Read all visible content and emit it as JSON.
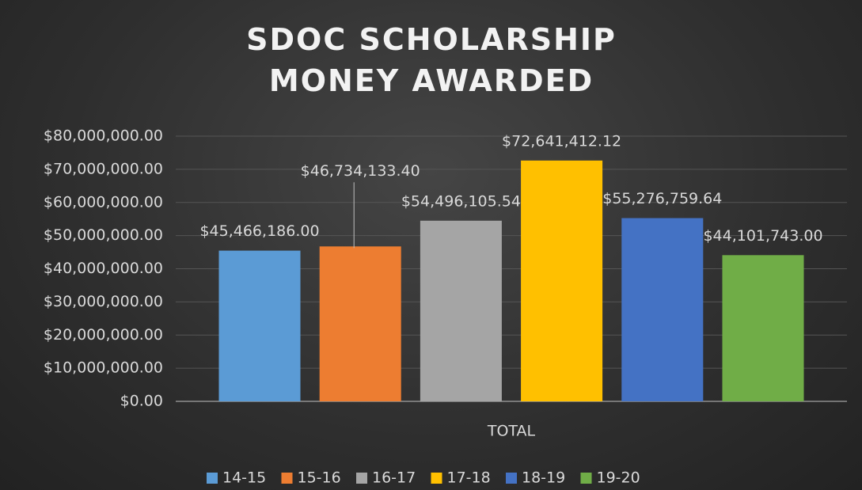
{
  "chart_data": {
    "type": "bar",
    "title": "SDOC SCHOLARSHIP MONEY AWARDED",
    "categories": [
      "TOTAL"
    ],
    "series": [
      {
        "name": "14-15",
        "color": "#5b9bd5",
        "values": [
          45466186.0
        ],
        "value_labels": [
          "$45,466,186.00"
        ]
      },
      {
        "name": "15-16",
        "color": "#ed7d31",
        "values": [
          46734133.4
        ],
        "value_labels": [
          "$46,734,133.40"
        ]
      },
      {
        "name": "16-17",
        "color": "#a5a5a5",
        "values": [
          54496105.54
        ],
        "value_labels": [
          "$54,496,105.54"
        ]
      },
      {
        "name": "17-18",
        "color": "#ffc000",
        "values": [
          72641412.12
        ],
        "value_labels": [
          "$72,641,412.12"
        ]
      },
      {
        "name": "18-19",
        "color": "#4472c4",
        "values": [
          55276759.64
        ],
        "value_labels": [
          "$55,276,759.64"
        ]
      },
      {
        "name": "19-20",
        "color": "#70ad47",
        "values": [
          44101743.0
        ],
        "value_labels": [
          "$44,101,743.00"
        ]
      }
    ],
    "ylim": [
      0,
      80000000
    ],
    "yticks": [
      {
        "value": 0,
        "label": "$0.00"
      },
      {
        "value": 10000000,
        "label": "$10,000,000.00"
      },
      {
        "value": 20000000,
        "label": "$20,000,000.00"
      },
      {
        "value": 30000000,
        "label": "$30,000,000.00"
      },
      {
        "value": 40000000,
        "label": "$40,000,000.00"
      },
      {
        "value": 50000000,
        "label": "$50,000,000.00"
      },
      {
        "value": 60000000,
        "label": "$60,000,000.00"
      },
      {
        "value": 70000000,
        "label": "$70,000,000.00"
      },
      {
        "value": 80000000,
        "label": "$80,000,000.00"
      }
    ],
    "grid": true,
    "legend": "bottom"
  }
}
